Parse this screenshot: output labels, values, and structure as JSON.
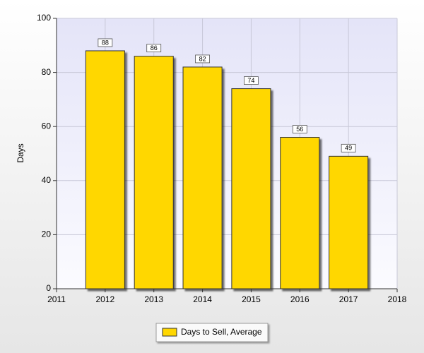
{
  "chart_data": {
    "type": "bar",
    "y_label": "Days",
    "x": [
      2012,
      2013,
      2014,
      2015,
      2016,
      2017
    ],
    "series": [
      {
        "name": "Days to Sell, Average",
        "color": "#ffd700",
        "values": [
          88,
          86,
          82,
          74,
          56,
          49
        ]
      }
    ],
    "xlim": [
      2011,
      2018
    ],
    "xticks": [
      2011,
      2012,
      2013,
      2014,
      2015,
      2016,
      2017,
      2018
    ],
    "ylim": [
      0,
      100
    ],
    "yticks": [
      0,
      20,
      40,
      60,
      80,
      100
    ],
    "grid": true,
    "legend": "bottom"
  }
}
